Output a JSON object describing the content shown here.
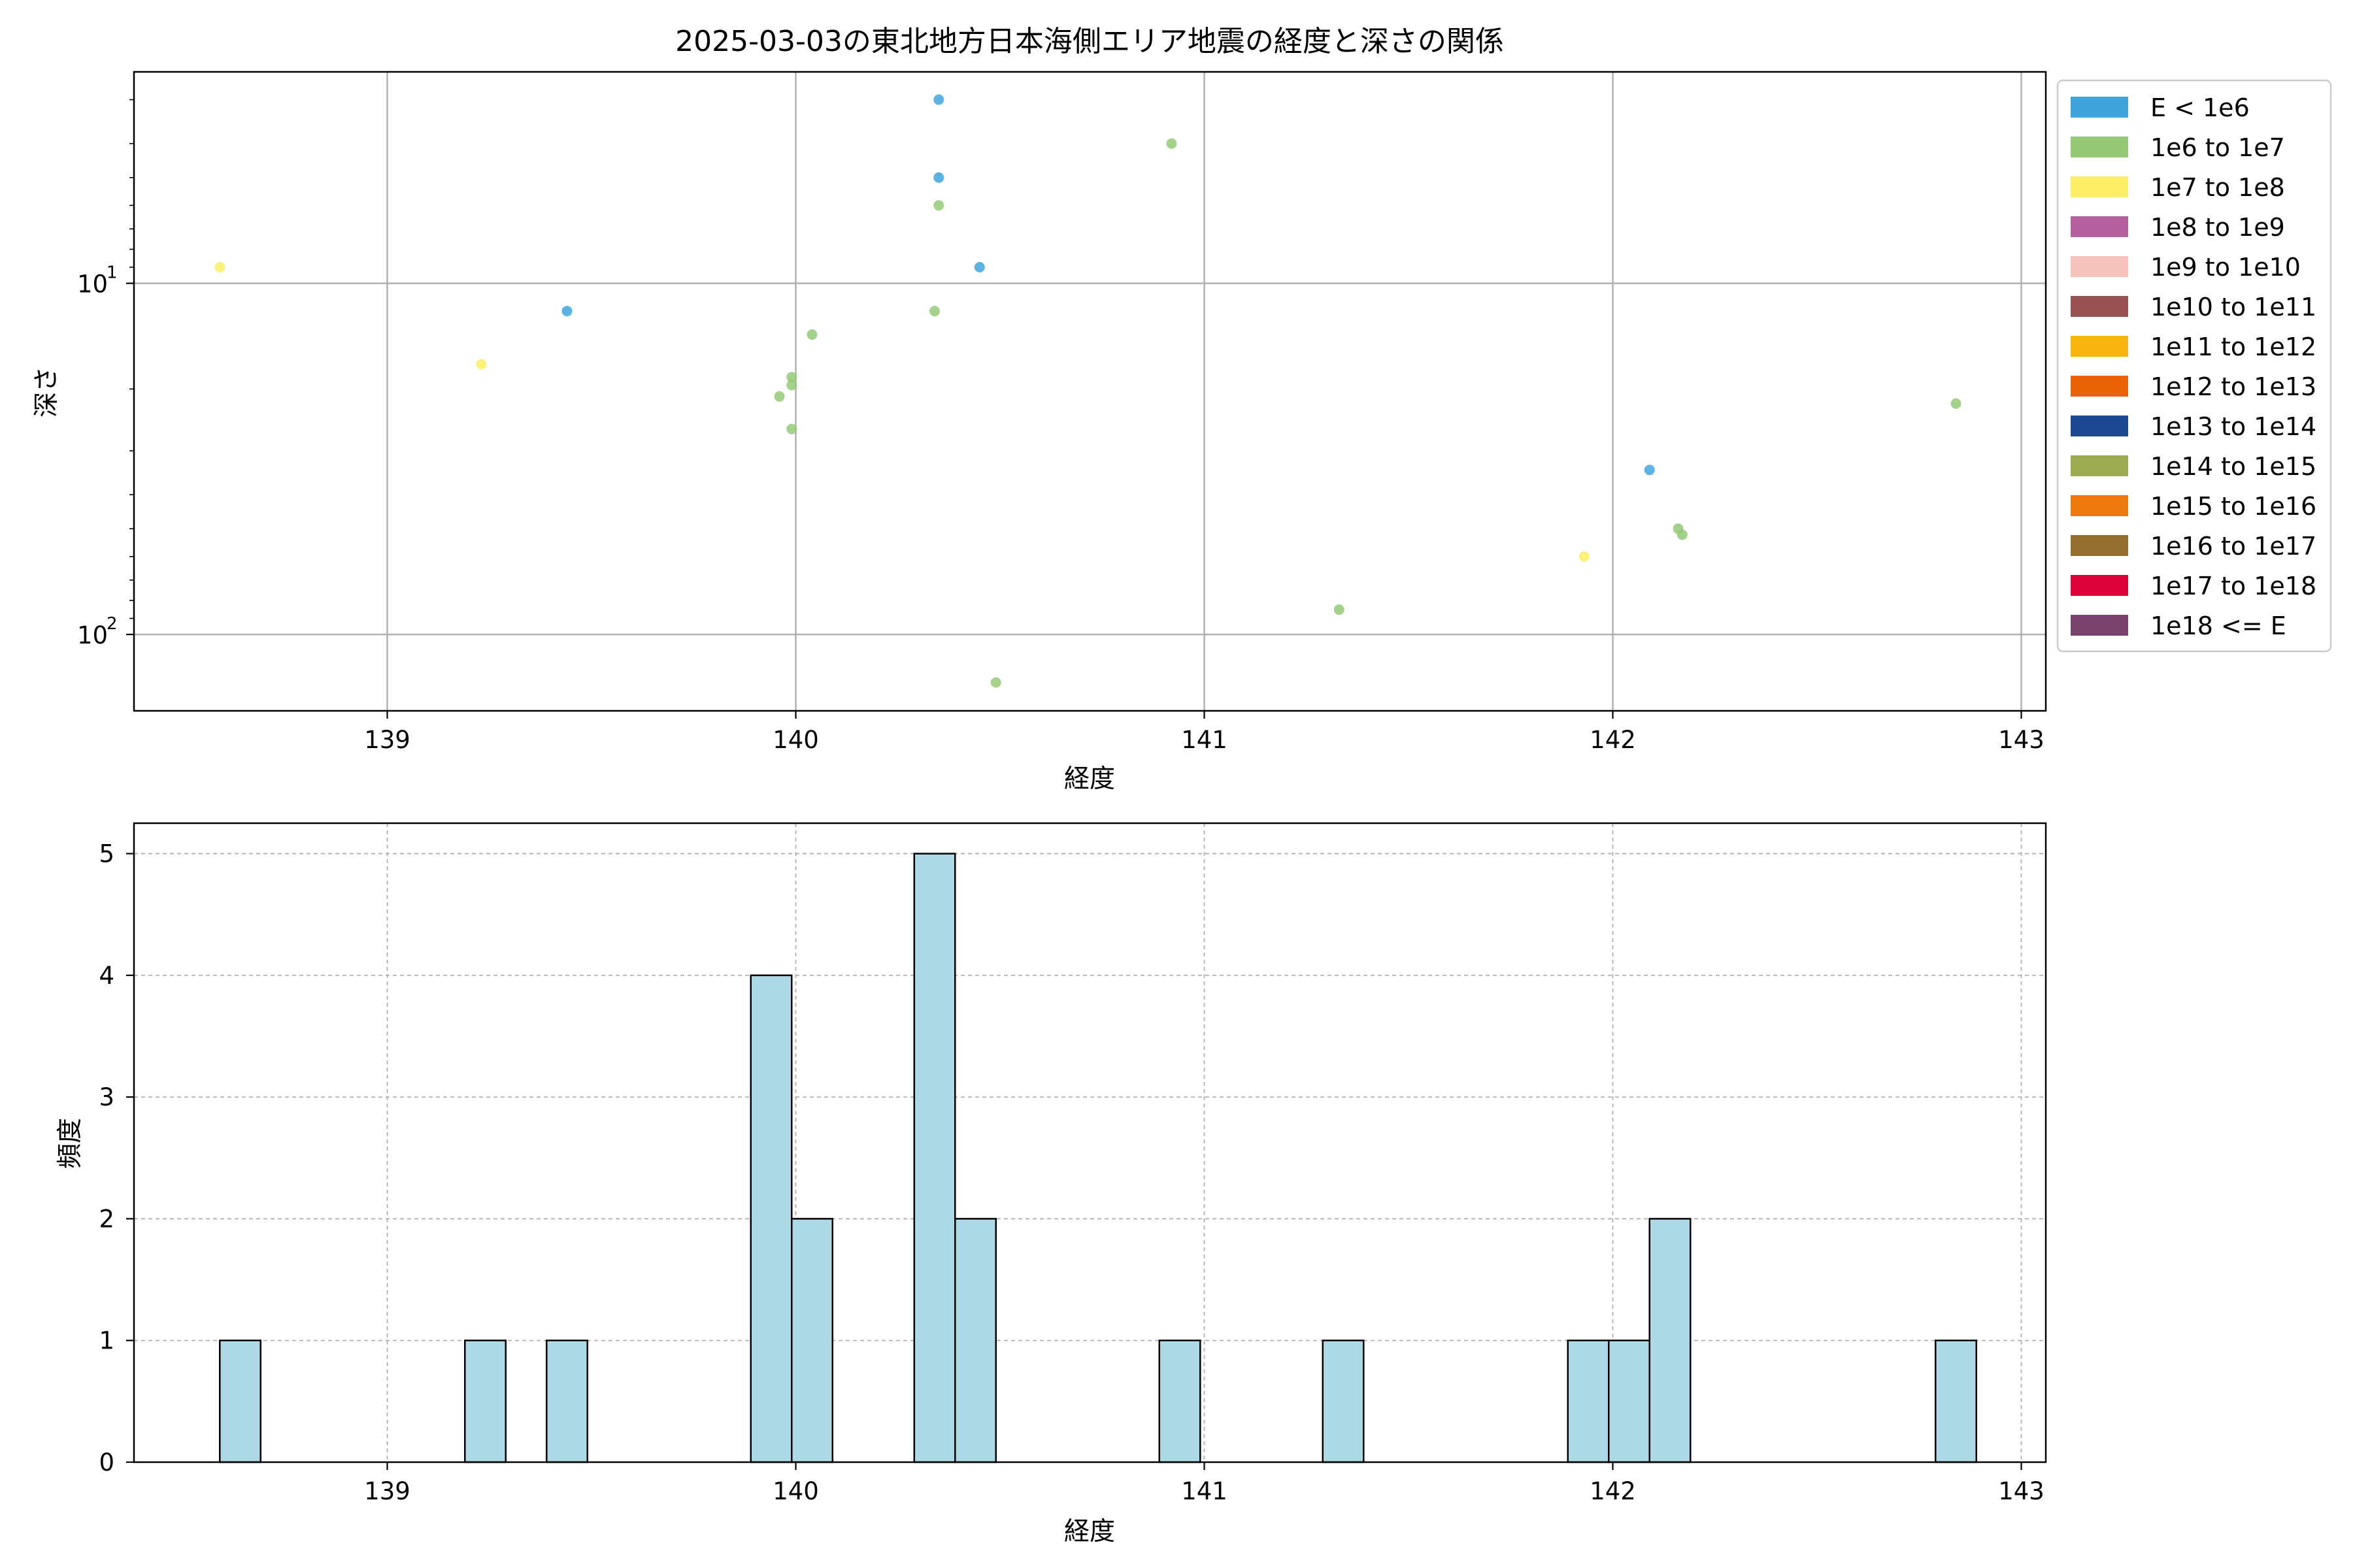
{
  "chart_data": [
    {
      "type": "scatter",
      "title": "2025-03-03の東北地方日本海側エリア地震の経度と深さの関係",
      "xlabel": "経度",
      "ylabel": "深さ",
      "xlim": [
        138.38,
        143.06
      ],
      "ylim": [
        165,
        2.5
      ],
      "yscale": "log",
      "y_inverted": true,
      "grid": true,
      "x_ticks": [
        {
          "value": 139,
          "label": "139"
        },
        {
          "value": 140,
          "label": "140"
        },
        {
          "value": 141,
          "label": "141"
        },
        {
          "value": 142,
          "label": "142"
        },
        {
          "value": 143,
          "label": "143"
        }
      ],
      "y_ticks": [
        {
          "value": 10,
          "base": "10",
          "exp": "1"
        },
        {
          "value": 100,
          "base": "10",
          "exp": "2"
        }
      ],
      "legend_position": "outside-right",
      "legend": [
        {
          "label": "E < 1e6",
          "color": "#3fa4dc"
        },
        {
          "label": "1e6 to 1e7",
          "color": "#94c978"
        },
        {
          "label": "1e7 to 1e8",
          "color": "#fbee66"
        },
        {
          "label": "1e8 to 1e9",
          "color": "#b5609f"
        },
        {
          "label": "1e9 to 1e10",
          "color": "#f5c1b9"
        },
        {
          "label": "1e10 to 1e11",
          "color": "#9a5250"
        },
        {
          "label": "1e11 to 1e12",
          "color": "#f8b40e"
        },
        {
          "label": "1e12 to 1e13",
          "color": "#ec6206"
        },
        {
          "label": "1e13 to 1e14",
          "color": "#1c4993"
        },
        {
          "label": "1e14 to 1e15",
          "color": "#9dac50"
        },
        {
          "label": "1e15 to 1e16",
          "color": "#ee7a0e"
        },
        {
          "label": "1e16 to 1e17",
          "color": "#946e2c"
        },
        {
          "label": "1e17 to 1e18",
          "color": "#dc0238"
        },
        {
          "label": "1e18 <= E",
          "color": "#79436d"
        }
      ],
      "points": [
        {
          "x": 140.35,
          "y": 3.0,
          "class": "E < 1e6"
        },
        {
          "x": 140.35,
          "y": 5.0,
          "class": "E < 1e6"
        },
        {
          "x": 140.45,
          "y": 9.0,
          "class": "E < 1e6"
        },
        {
          "x": 139.44,
          "y": 12.0,
          "class": "E < 1e6"
        },
        {
          "x": 142.09,
          "y": 34.0,
          "class": "E < 1e6"
        },
        {
          "x": 140.92,
          "y": 4.0,
          "class": "1e6 to 1e7"
        },
        {
          "x": 140.35,
          "y": 6.0,
          "class": "1e6 to 1e7"
        },
        {
          "x": 140.34,
          "y": 12.0,
          "class": "1e6 to 1e7"
        },
        {
          "x": 140.04,
          "y": 14.0,
          "class": "1e6 to 1e7"
        },
        {
          "x": 139.99,
          "y": 18.5,
          "class": "1e6 to 1e7"
        },
        {
          "x": 139.99,
          "y": 19.5,
          "class": "1e6 to 1e7"
        },
        {
          "x": 139.96,
          "y": 21.0,
          "class": "1e6 to 1e7"
        },
        {
          "x": 139.99,
          "y": 26.0,
          "class": "1e6 to 1e7"
        },
        {
          "x": 142.84,
          "y": 22.0,
          "class": "1e6 to 1e7"
        },
        {
          "x": 142.16,
          "y": 50.0,
          "class": "1e6 to 1e7"
        },
        {
          "x": 142.17,
          "y": 52.0,
          "class": "1e6 to 1e7"
        },
        {
          "x": 141.33,
          "y": 85.0,
          "class": "1e6 to 1e7"
        },
        {
          "x": 140.49,
          "y": 137.0,
          "class": "1e6 to 1e7"
        },
        {
          "x": 138.59,
          "y": 9.0,
          "class": "1e7 to 1e8"
        },
        {
          "x": 139.23,
          "y": 17.0,
          "class": "1e7 to 1e8"
        },
        {
          "x": 141.93,
          "y": 60.0,
          "class": "1e7 to 1e8"
        }
      ]
    },
    {
      "type": "bar",
      "title": "",
      "xlabel": "経度",
      "ylabel": "頻度",
      "xlim": [
        138.38,
        143.06
      ],
      "ylim": [
        0,
        5.25
      ],
      "grid": true,
      "bar_color": "#add8e6",
      "x_ticks": [
        {
          "value": 139,
          "label": "139"
        },
        {
          "value": 140,
          "label": "140"
        },
        {
          "value": 141,
          "label": "141"
        },
        {
          "value": 142,
          "label": "142"
        },
        {
          "value": 143,
          "label": "143"
        }
      ],
      "y_ticks": [
        {
          "value": 0,
          "label": "0"
        },
        {
          "value": 1,
          "label": "1"
        },
        {
          "value": 2,
          "label": "2"
        },
        {
          "value": 3,
          "label": "3"
        },
        {
          "value": 4,
          "label": "4"
        },
        {
          "value": 5,
          "label": "5"
        }
      ],
      "bins": [
        {
          "start": 138.59,
          "end": 138.69,
          "count": 1
        },
        {
          "start": 139.19,
          "end": 139.29,
          "count": 1
        },
        {
          "start": 139.39,
          "end": 139.49,
          "count": 1
        },
        {
          "start": 139.89,
          "end": 139.99,
          "count": 4
        },
        {
          "start": 139.99,
          "end": 140.09,
          "count": 2
        },
        {
          "start": 140.29,
          "end": 140.39,
          "count": 5
        },
        {
          "start": 140.39,
          "end": 140.49,
          "count": 2
        },
        {
          "start": 140.89,
          "end": 140.99,
          "count": 1
        },
        {
          "start": 141.29,
          "end": 141.39,
          "count": 1
        },
        {
          "start": 141.89,
          "end": 141.99,
          "count": 1
        },
        {
          "start": 141.99,
          "end": 142.09,
          "count": 1
        },
        {
          "start": 142.09,
          "end": 142.19,
          "count": 2
        },
        {
          "start": 142.79,
          "end": 142.89,
          "count": 1
        }
      ]
    }
  ]
}
